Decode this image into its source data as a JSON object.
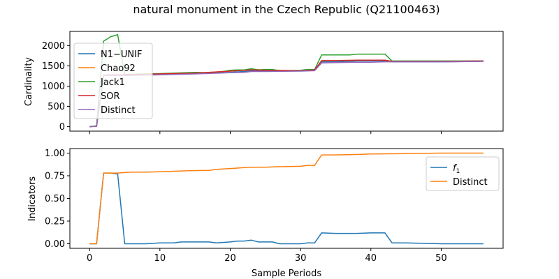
{
  "chart_data": [
    {
      "type": "line",
      "title": "natural monument in the Czech Republic (Q21100463)",
      "xlabel": "",
      "ylabel": "Cardinality",
      "xlim": [
        -2.8,
        58.8
      ],
      "ylim": [
        -110,
        2350
      ],
      "xticks": [
        0,
        10,
        20,
        30,
        40,
        50
      ],
      "yticks": [
        0,
        500,
        1000,
        1500,
        2000
      ],
      "show_x_tick_labels": false,
      "grid": false,
      "legend_position": "upper-left",
      "series": [
        {
          "name": "N1−UNIF",
          "color": "#1f77b4",
          "x": [
            0,
            1,
            2,
            3,
            4,
            5,
            10,
            15,
            20,
            22,
            23,
            25,
            30,
            32,
            33,
            35,
            38,
            40,
            42,
            43,
            45,
            50,
            56
          ],
          "y": [
            0,
            10,
            1260,
            1270,
            1270,
            1270,
            1290,
            1310,
            1340,
            1360,
            1380,
            1380,
            1380,
            1390,
            1600,
            1600,
            1620,
            1620,
            1620,
            1600,
            1600,
            1600,
            1610
          ]
        },
        {
          "name": "Chao92",
          "color": "#ff7f0e",
          "x": [
            0,
            1,
            2,
            3,
            4,
            5,
            10,
            15,
            20,
            22,
            23,
            25,
            30,
            32,
            33,
            35,
            38,
            40,
            42,
            43,
            45,
            50,
            56
          ],
          "y": [
            0,
            10,
            1270,
            1280,
            1280,
            1280,
            1300,
            1320,
            1370,
            1390,
            1410,
            1400,
            1380,
            1400,
            1630,
            1630,
            1640,
            1640,
            1640,
            1610,
            1610,
            1610,
            1620
          ]
        },
        {
          "name": "Jack1",
          "color": "#2ca02c",
          "x": [
            0,
            1,
            2,
            3,
            4,
            5,
            10,
            15,
            17,
            18,
            20,
            21,
            22,
            23,
            24,
            25,
            26,
            27,
            30,
            31,
            32,
            33,
            35,
            37,
            38,
            40,
            42,
            43,
            45,
            50,
            56
          ],
          "y": [
            0,
            20,
            2110,
            2220,
            2270,
            1290,
            1310,
            1340,
            1330,
            1330,
            1390,
            1400,
            1400,
            1430,
            1400,
            1410,
            1410,
            1380,
            1390,
            1410,
            1410,
            1770,
            1770,
            1770,
            1790,
            1790,
            1790,
            1620,
            1620,
            1620,
            1620
          ]
        },
        {
          "name": "SOR",
          "color": "#d62728",
          "x": [
            0,
            1,
            2,
            3,
            4,
            5,
            10,
            15,
            20,
            22,
            23,
            25,
            30,
            32,
            33,
            35,
            38,
            40,
            42,
            43,
            45,
            50,
            56
          ],
          "y": [
            0,
            10,
            1270,
            1280,
            1280,
            1280,
            1300,
            1320,
            1370,
            1390,
            1400,
            1390,
            1380,
            1400,
            1630,
            1630,
            1640,
            1640,
            1640,
            1610,
            1610,
            1610,
            1620
          ]
        },
        {
          "name": "Distinct",
          "color": "#9467bd",
          "x": [
            0,
            1,
            2,
            3,
            4,
            5,
            10,
            15,
            20,
            22,
            23,
            25,
            30,
            32,
            33,
            35,
            38,
            40,
            42,
            43,
            45,
            50,
            56
          ],
          "y": [
            0,
            10,
            1260,
            1260,
            1260,
            1260,
            1280,
            1300,
            1330,
            1340,
            1360,
            1360,
            1370,
            1380,
            1570,
            1580,
            1590,
            1590,
            1600,
            1600,
            1600,
            1600,
            1610
          ]
        }
      ]
    },
    {
      "type": "line",
      "title": "",
      "xlabel": "Sample Periods",
      "ylabel": "Indicators",
      "xlim": [
        -2.8,
        58.8
      ],
      "ylim": [
        -0.05,
        1.05
      ],
      "xticks": [
        0,
        10,
        20,
        30,
        40,
        50
      ],
      "yticks": [
        0.0,
        0.25,
        0.5,
        0.75,
        1.0
      ],
      "ytick_labels": [
        "0.00",
        "0.25",
        "0.50",
        "0.75",
        "1.00"
      ],
      "show_x_tick_labels": true,
      "grid": false,
      "legend_position": "upper-right",
      "series": [
        {
          "name": "f1",
          "label_main": "f",
          "label_sub": "1",
          "color": "#1f77b4",
          "x": [
            0,
            1,
            2,
            3,
            4,
            5,
            8,
            10,
            12,
            13,
            15,
            17,
            18,
            20,
            21,
            22,
            23,
            24,
            26,
            27,
            30,
            31,
            32,
            33,
            35,
            38,
            40,
            42,
            43,
            45,
            50,
            56
          ],
          "y": [
            0.0,
            0.0,
            0.78,
            0.78,
            0.77,
            0.0,
            0.0,
            0.01,
            0.01,
            0.02,
            0.02,
            0.02,
            0.01,
            0.02,
            0.03,
            0.03,
            0.04,
            0.02,
            0.02,
            0.0,
            0.0,
            0.01,
            0.01,
            0.12,
            0.115,
            0.115,
            0.12,
            0.12,
            0.01,
            0.01,
            0.0,
            0.0
          ]
        },
        {
          "name": "Distinct",
          "color": "#ff7f0e",
          "x": [
            0,
            1,
            2,
            3,
            4,
            5,
            6,
            8,
            10,
            12,
            14,
            17,
            18,
            20,
            21,
            22,
            23,
            25,
            27,
            30,
            31,
            32,
            33,
            35,
            38,
            40,
            45,
            50,
            56
          ],
          "y": [
            0.0,
            0.0,
            0.78,
            0.78,
            0.78,
            0.785,
            0.79,
            0.79,
            0.795,
            0.8,
            0.805,
            0.81,
            0.82,
            0.83,
            0.835,
            0.84,
            0.845,
            0.845,
            0.85,
            0.855,
            0.865,
            0.865,
            0.98,
            0.98,
            0.985,
            0.99,
            0.995,
            1.0,
            1.0
          ]
        }
      ]
    }
  ]
}
